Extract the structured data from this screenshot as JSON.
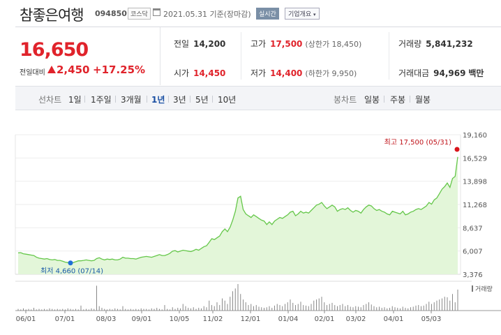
{
  "header": {
    "company_name": "참좋은여행",
    "stock_code": "094850",
    "market_badge": "코스닥",
    "date_text": "2021.05.31 기준(장마감)",
    "realtime_badge": "실시간",
    "company_overview_label": "기업개요"
  },
  "price": {
    "current": "16,650",
    "change_label": "전일대비",
    "change_value": "2,450",
    "change_pct": "+17.25%",
    "up_color": "#e0232b"
  },
  "summary": {
    "prev_close_label": "전일",
    "prev_close": "14,200",
    "high_label": "고가",
    "high": "17,500",
    "upper_limit_text": "(상한가 18,450)",
    "volume_label": "거래량",
    "volume": "5,841,232",
    "open_label": "시가",
    "open": "14,450",
    "low_label": "저가",
    "low": "14,400",
    "lower_limit_text": "(하한가 9,950)",
    "trade_value_label": "거래대금",
    "trade_value": "94,969",
    "trade_value_unit": "백만"
  },
  "period_tabs": {
    "label": "선차트",
    "items": [
      "1일",
      "1주일",
      "3개월",
      "1년",
      "3년",
      "5년",
      "10년"
    ],
    "selected": "1년"
  },
  "candle_tabs": {
    "label": "봉차트",
    "items": [
      "일봉",
      "주봉",
      "월봉"
    ]
  },
  "chart_data": {
    "type": "area",
    "y_ticks": [
      "19,160",
      "16,529",
      "13,898",
      "11,268",
      "8,637",
      "6,007",
      "3,376"
    ],
    "ylim": [
      3376,
      19160
    ],
    "x_ticks": [
      "06/01",
      "07/01",
      "08/03",
      "09/01",
      "10/05",
      "11/02",
      "12/01",
      "01/04",
      "02/01",
      "03/02",
      "04/01",
      "05/03"
    ],
    "max_annotation": "최고 17,500 (05/31)",
    "min_annotation": "최저 4,660 (07/14)",
    "volume_legend": "거래량",
    "line_color": "#65c74a",
    "fill_color": "#e3f6d9",
    "series": [
      {
        "values": [
          5800,
          5820,
          5700,
          5650,
          5600,
          5550,
          5500,
          5300,
          5200,
          5150,
          5100,
          5150,
          5050,
          5000,
          5050,
          4950,
          4950,
          4850,
          4750,
          4700,
          4660,
          4700,
          4800,
          4900,
          4900,
          4950,
          5000,
          4950,
          4900,
          4950,
          5150,
          5250,
          5100,
          5000,
          5100,
          5050,
          5100,
          5000,
          5000,
          5100,
          5300,
          5200,
          5200,
          5150,
          5150,
          5100,
          5200,
          5300,
          5350,
          5400,
          5350,
          5300,
          5400,
          5500,
          5600,
          5500,
          5500,
          5600,
          5750,
          6000,
          6050,
          5900,
          6000,
          6100,
          6050,
          6000,
          5950,
          6050,
          6200,
          6100,
          6300,
          6500,
          6600,
          7000,
          7400,
          7300,
          7500,
          7700,
          8200,
          8500,
          8200,
          8700,
          9500,
          10500,
          12000,
          12200,
          10700,
          10200,
          10000,
          9800,
          10100,
          9900,
          9700,
          9500,
          9400,
          9000,
          9300,
          9000,
          9400,
          9600,
          9800,
          9700,
          9900,
          10100,
          10400,
          10500,
          10000,
          10200,
          10500,
          10300,
          10400,
          10300,
          10600,
          10900,
          11200,
          11300,
          11500,
          11100,
          10800,
          11000,
          11200,
          11000,
          10500,
          10700,
          10800,
          10700,
          10900,
          10600,
          10400,
          10600,
          10500,
          10300,
          10700,
          11000,
          11200,
          11100,
          10800,
          10600,
          10700,
          10500,
          10400,
          10200,
          10100,
          10500,
          10400,
          10300,
          10200,
          10500,
          10100,
          10200,
          10400,
          10500,
          10700,
          10800,
          10700,
          10900,
          11100,
          11500,
          11300,
          11800,
          12000,
          12500,
          13000,
          13300,
          13700,
          13200,
          14200,
          14450,
          16650
        ],
        "volume": [
          3,
          2,
          4,
          2,
          3,
          2,
          5,
          2,
          3,
          2,
          3,
          2,
          4,
          3,
          2,
          3,
          2,
          3,
          2,
          4,
          3,
          2,
          3,
          2,
          9,
          2,
          3,
          2,
          4,
          3,
          45,
          8,
          5,
          3,
          2,
          3,
          2,
          4,
          3,
          2,
          8,
          3,
          2,
          3,
          2,
          3,
          2,
          4,
          3,
          3,
          2,
          4,
          3,
          5,
          3,
          2,
          10,
          3,
          2,
          6,
          3,
          5,
          4,
          12,
          8,
          5,
          4,
          6,
          3,
          5,
          4,
          8,
          6,
          18,
          10,
          8,
          15,
          10,
          22,
          18,
          12,
          25,
          35,
          40,
          48,
          30,
          20,
          15,
          10,
          12,
          8,
          10,
          7,
          6,
          5,
          6,
          8,
          5,
          9,
          12,
          10,
          8,
          12,
          15,
          20,
          14,
          10,
          12,
          16,
          10,
          9,
          8,
          12,
          18,
          20,
          22,
          25,
          15,
          10,
          12,
          14,
          10,
          8,
          10,
          12,
          8,
          10,
          7,
          6,
          8,
          7,
          6,
          10,
          12,
          15,
          11,
          8,
          6,
          7,
          5,
          6,
          4,
          5,
          8,
          6,
          5,
          4,
          7,
          5,
          4,
          6,
          7,
          9,
          10,
          8,
          9,
          12,
          16,
          12,
          15,
          18,
          20,
          22,
          25,
          24,
          18,
          30,
          15,
          38
        ]
      }
    ]
  }
}
